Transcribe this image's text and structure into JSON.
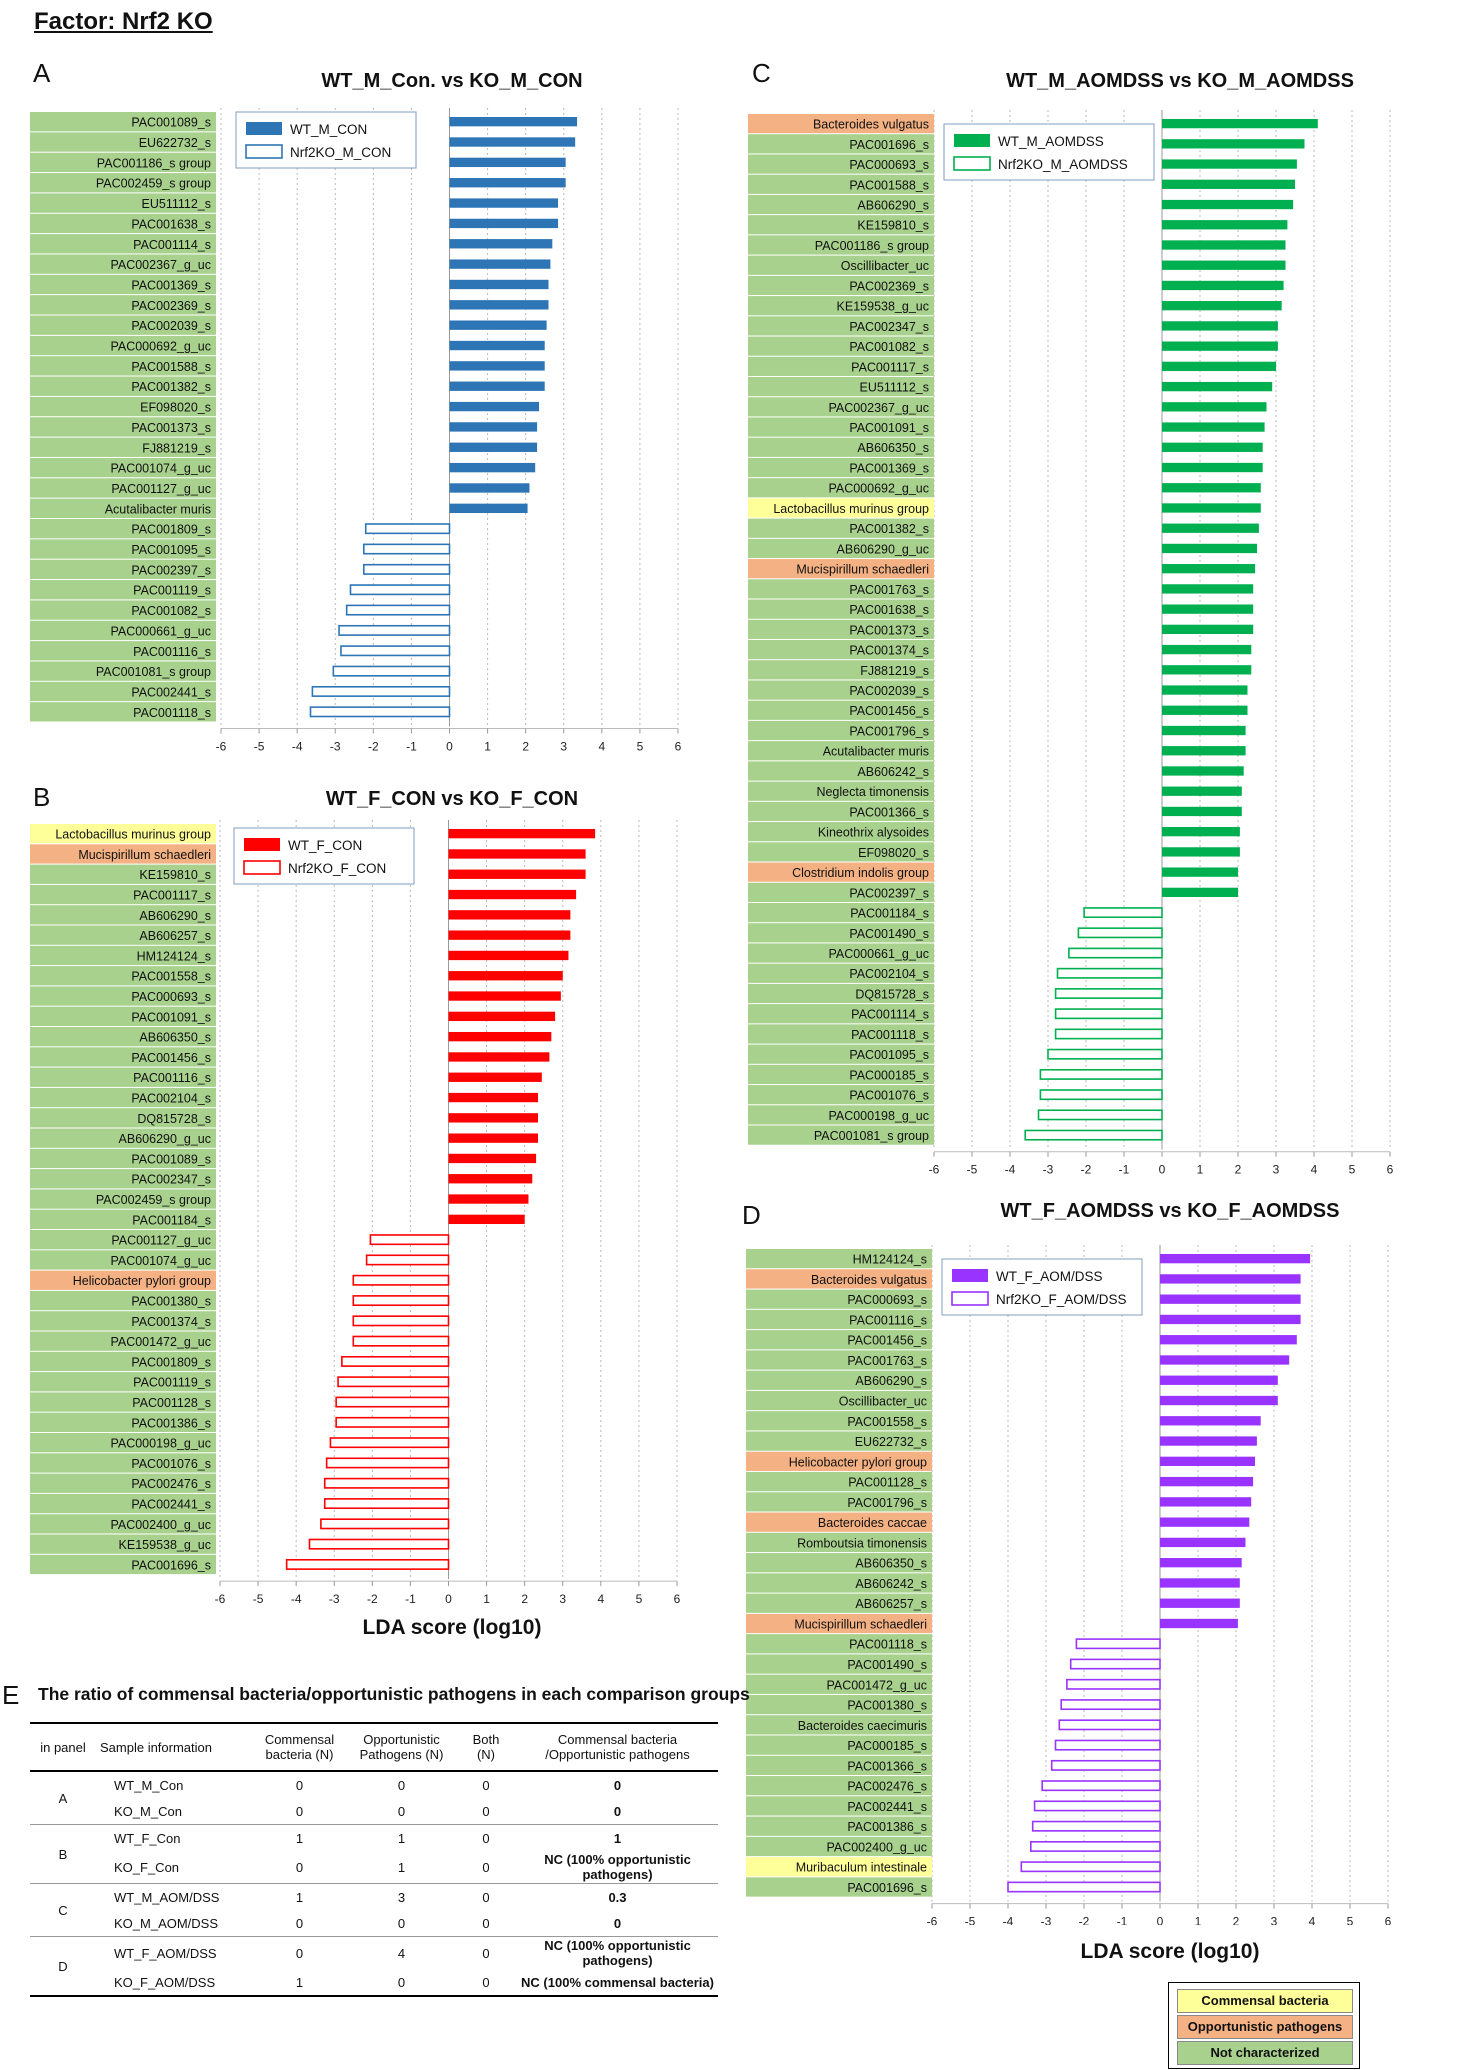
{
  "page_title": "Factor: Nrf2 KO",
  "colors": {
    "commensal": "#ffff99",
    "opportunistic": "#f4b183",
    "not_characterized": "#a9d18e",
    "A_bar": "#2e75b6",
    "B_bar": "#ff0000",
    "C_bar": "#00b050",
    "D_bar": "#9933ff"
  },
  "chart_data": [
    {
      "type": "bar",
      "panel": "A",
      "title": "WT_M_Con. vs KO_M_CON",
      "xlabel": "",
      "xlim": [
        -6,
        6
      ],
      "ticks": [
        "-6",
        "-5",
        "-4",
        "-3",
        "-2",
        "-1",
        "0",
        "1",
        "2",
        "3",
        "4",
        "5",
        "6"
      ],
      "legend": [
        "WT_M_CON",
        "Nrf2KO_M_CON"
      ],
      "color": "#2e75b6",
      "categories": [
        "PAC001089_s",
        "EU622732_s",
        "PAC001186_s group",
        "PAC002459_s group",
        "EU511112_s",
        "PAC001638_s",
        "PAC001114_s",
        "PAC002367_g_uc",
        "PAC001369_s",
        "PAC002369_s",
        "PAC002039_s",
        "PAC000692_g_uc",
        "PAC001588_s",
        "PAC001382_s",
        "EF098020_s",
        "PAC001373_s",
        "FJ881219_s",
        "PAC001074_g_uc",
        "PAC001127_g_uc",
        "Acutalibacter muris",
        "PAC001809_s",
        "PAC001095_s",
        "PAC002397_s",
        "PAC001119_s",
        "PAC001082_s",
        "PAC000661_g_uc",
        "PAC001116_s",
        "PAC001081_s group",
        "PAC002441_s",
        "PAC001118_s"
      ],
      "values": [
        3.35,
        3.3,
        3.05,
        3.05,
        2.85,
        2.85,
        2.7,
        2.65,
        2.6,
        2.6,
        2.55,
        2.5,
        2.5,
        2.5,
        2.35,
        2.3,
        2.3,
        2.25,
        2.1,
        2.05,
        -2.2,
        -2.25,
        -2.25,
        -2.6,
        -2.7,
        -2.9,
        -2.85,
        -3.05,
        -3.6,
        -3.65
      ],
      "category_type": [
        "n",
        "n",
        "n",
        "n",
        "n",
        "n",
        "n",
        "n",
        "n",
        "n",
        "n",
        "n",
        "n",
        "n",
        "n",
        "n",
        "n",
        "n",
        "n",
        "n",
        "n",
        "n",
        "n",
        "n",
        "n",
        "n",
        "n",
        "n",
        "n",
        "n"
      ]
    },
    {
      "type": "bar",
      "panel": "B",
      "title": "WT_F_CON vs KO_F_CON",
      "xlabel": "LDA score (log10)",
      "xlim": [
        -6,
        6
      ],
      "ticks": [
        "-6",
        "-5",
        "-4",
        "-3",
        "-2",
        "-1",
        "0",
        "1",
        "2",
        "3",
        "4",
        "5",
        "6"
      ],
      "legend": [
        "WT_F_CON",
        "Nrf2KO_F_CON"
      ],
      "color": "#ff0000",
      "categories": [
        "Lactobacillus murinus group",
        "Mucispirillum schaedleri",
        "KE159810_s",
        "PAC001117_s",
        "AB606290_s",
        "AB606257_s",
        "HM124124_s",
        "PAC001558_s",
        "PAC000693_s",
        "PAC001091_s",
        "AB606350_s",
        "PAC001456_s",
        "PAC001116_s",
        "PAC002104_s",
        "DQ815728_s",
        "AB606290_g_uc",
        "PAC001089_s",
        "PAC002347_s",
        "PAC002459_s group",
        "PAC001184_s",
        "PAC001127_g_uc",
        "PAC001074_g_uc",
        "Helicobacter pylori group",
        "PAC001380_s",
        "PAC001374_s",
        "PAC001472_g_uc",
        "PAC001809_s",
        "PAC001119_s",
        "PAC001128_s",
        "PAC001386_s",
        "PAC000198_g_uc",
        "PAC001076_s",
        "PAC002476_s",
        "PAC002441_s",
        "PAC002400_g_uc",
        "KE159538_g_uc",
        "PAC001696_s"
      ],
      "values": [
        3.85,
        3.6,
        3.6,
        3.35,
        3.2,
        3.2,
        3.15,
        3.0,
        2.95,
        2.8,
        2.7,
        2.65,
        2.45,
        2.35,
        2.35,
        2.35,
        2.3,
        2.2,
        2.1,
        2.0,
        -2.05,
        -2.15,
        -2.5,
        -2.5,
        -2.5,
        -2.5,
        -2.8,
        -2.9,
        -2.95,
        -2.95,
        -3.1,
        -3.2,
        -3.25,
        -3.25,
        -3.35,
        -3.65,
        -4.25
      ],
      "category_type": [
        "c",
        "o",
        "n",
        "n",
        "n",
        "n",
        "n",
        "n",
        "n",
        "n",
        "n",
        "n",
        "n",
        "n",
        "n",
        "n",
        "n",
        "n",
        "n",
        "n",
        "n",
        "n",
        "o",
        "n",
        "n",
        "n",
        "n",
        "n",
        "n",
        "n",
        "n",
        "n",
        "n",
        "n",
        "n",
        "n",
        "n"
      ]
    },
    {
      "type": "bar",
      "panel": "C",
      "title": "WT_M_AOMDSS vs KO_M_AOMDSS",
      "xlabel": "",
      "xlim": [
        -6,
        6
      ],
      "ticks": [
        "-6",
        "-5",
        "-4",
        "-3",
        "-2",
        "-1",
        "0",
        "1",
        "2",
        "3",
        "4",
        "5",
        "6"
      ],
      "legend": [
        "WT_M_AOMDSS",
        "Nrf2KO_M_AOMDSS"
      ],
      "color": "#00b050",
      "categories": [
        "Bacteroides vulgatus",
        "PAC001696_s",
        "PAC000693_s",
        "PAC001588_s",
        "AB606290_s",
        "KE159810_s",
        "PAC001186_s group",
        "Oscillibacter_uc",
        "PAC002369_s",
        "KE159538_g_uc",
        "PAC002347_s",
        "PAC001082_s",
        "PAC001117_s",
        "EU511112_s",
        "PAC002367_g_uc",
        "PAC001091_s",
        "AB606350_s",
        "PAC001369_s",
        "PAC000692_g_uc",
        "Lactobacillus murinus group",
        "PAC001382_s",
        "AB606290_g_uc",
        "Mucispirillum schaedleri",
        "PAC001763_s",
        "PAC001638_s",
        "PAC001373_s",
        "PAC001374_s",
        "FJ881219_s",
        "PAC002039_s",
        "PAC001456_s",
        "PAC001796_s",
        "Acutalibacter muris",
        "AB606242_s",
        "Neglecta timonensis",
        "PAC001366_s",
        "Kineothrix alysoides",
        "EF098020_s",
        "Clostridium indolis group",
        "PAC002397_s",
        "PAC001184_s",
        "PAC001490_s",
        "PAC000661_g_uc",
        "PAC002104_s",
        "DQ815728_s",
        "PAC001114_s",
        "PAC001118_s",
        "PAC001095_s",
        "PAC000185_s",
        "PAC001076_s",
        "PAC000198_g_uc",
        "PAC001081_s group"
      ],
      "values": [
        4.1,
        3.75,
        3.55,
        3.5,
        3.45,
        3.3,
        3.25,
        3.25,
        3.2,
        3.15,
        3.05,
        3.05,
        3.0,
        2.9,
        2.75,
        2.7,
        2.65,
        2.65,
        2.6,
        2.6,
        2.55,
        2.5,
        2.45,
        2.4,
        2.4,
        2.4,
        2.35,
        2.35,
        2.25,
        2.25,
        2.2,
        2.2,
        2.15,
        2.1,
        2.1,
        2.05,
        2.05,
        2.0,
        2.0,
        -2.05,
        -2.2,
        -2.45,
        -2.75,
        -2.8,
        -2.8,
        -2.8,
        -3.0,
        -3.2,
        -3.2,
        -3.25,
        -3.6
      ],
      "category_type": [
        "o",
        "n",
        "n",
        "n",
        "n",
        "n",
        "n",
        "n",
        "n",
        "n",
        "n",
        "n",
        "n",
        "n",
        "n",
        "n",
        "n",
        "n",
        "n",
        "c",
        "n",
        "n",
        "o",
        "n",
        "n",
        "n",
        "n",
        "n",
        "n",
        "n",
        "n",
        "n",
        "n",
        "n",
        "n",
        "n",
        "n",
        "o",
        "n",
        "n",
        "n",
        "n",
        "n",
        "n",
        "n",
        "n",
        "n",
        "n",
        "n",
        "n",
        "n"
      ]
    },
    {
      "type": "bar",
      "panel": "D",
      "title": "WT_F_AOMDSS vs KO_F_AOMDSS",
      "xlabel": "LDA score (log10)",
      "xlim": [
        -6,
        6
      ],
      "ticks": [
        "-6",
        "-5",
        "-4",
        "-3",
        "-2",
        "-1",
        "0",
        "1",
        "2",
        "3",
        "4",
        "5",
        "6"
      ],
      "legend": [
        "WT_F_AOM/DSS",
        "Nrf2KO_F_AOM/DSS"
      ],
      "color": "#9933ff",
      "categories": [
        "HM124124_s",
        "Bacteroides vulgatus",
        "PAC000693_s",
        "PAC001116_s",
        "PAC001456_s",
        "PAC001763_s",
        "AB606290_s",
        "Oscillibacter_uc",
        "PAC001558_s",
        "EU622732_s",
        "Helicobacter pylori group",
        "PAC001128_s",
        "PAC001796_s",
        "Bacteroides caccae",
        "Romboutsia timonensis",
        "AB606350_s",
        "AB606242_s",
        "AB606257_s",
        "Mucispirillum schaedleri",
        "PAC001118_s",
        "PAC001490_s",
        "PAC001472_g_uc",
        "PAC001380_s",
        "Bacteroides caecimuris",
        "PAC000185_s",
        "PAC001366_s",
        "PAC002476_s",
        "PAC002441_s",
        "PAC001386_s",
        "PAC002400_g_uc",
        "Muribaculum intestinale",
        "PAC001696_s"
      ],
      "values": [
        3.95,
        3.7,
        3.7,
        3.7,
        3.6,
        3.4,
        3.1,
        3.1,
        2.65,
        2.55,
        2.5,
        2.45,
        2.4,
        2.35,
        2.25,
        2.15,
        2.1,
        2.1,
        2.05,
        -2.2,
        -2.35,
        -2.45,
        -2.6,
        -2.65,
        -2.75,
        -2.85,
        -3.1,
        -3.3,
        -3.35,
        -3.4,
        -3.65,
        -4.0
      ],
      "category_type": [
        "n",
        "o",
        "n",
        "n",
        "n",
        "n",
        "n",
        "n",
        "n",
        "n",
        "o",
        "n",
        "n",
        "o",
        "n",
        "n",
        "n",
        "n",
        "o",
        "n",
        "n",
        "n",
        "n",
        "n",
        "n",
        "n",
        "n",
        "n",
        "n",
        "n",
        "c",
        "n"
      ]
    }
  ],
  "table": {
    "panel_letter": "E",
    "title": "The ratio of commensal bacteria/opportunistic pathogens in each comparison groups",
    "headers": {
      "panel": "in panel",
      "sample": "Sample information",
      "commensal": [
        "Commensal",
        "bacteria (N)"
      ],
      "opportunistic": [
        "Opportunistic",
        "Pathogens (N)"
      ],
      "both": [
        "Both",
        "(N)"
      ],
      "ratio": [
        "Commensal bacteria",
        "/Opportunistic pathogens"
      ]
    },
    "rows": [
      {
        "panel": "A",
        "sample": "WT_M_Con",
        "commensal": "0",
        "opportunistic": "0",
        "both": "0",
        "ratio": "0"
      },
      {
        "panel": "",
        "sample": "KO_M_Con",
        "commensal": "0",
        "opportunistic": "0",
        "both": "0",
        "ratio": "0"
      },
      {
        "panel": "B",
        "sample": "WT_F_Con",
        "commensal": "1",
        "opportunistic": "1",
        "both": "0",
        "ratio": "1"
      },
      {
        "panel": "",
        "sample": "KO_F_Con",
        "commensal": "0",
        "opportunistic": "1",
        "both": "0",
        "ratio": "NC (100% opportunistic pathogens)"
      },
      {
        "panel": "C",
        "sample": "WT_M_AOM/DSS",
        "commensal": "1",
        "opportunistic": "3",
        "both": "0",
        "ratio": "0.3"
      },
      {
        "panel": "",
        "sample": "KO_M_AOM/DSS",
        "commensal": "0",
        "opportunistic": "0",
        "both": "0",
        "ratio": "0"
      },
      {
        "panel": "D",
        "sample": "WT_F_AOM/DSS",
        "commensal": "0",
        "opportunistic": "4",
        "both": "0",
        "ratio": "NC (100% opportunistic pathogens)"
      },
      {
        "panel": "",
        "sample": "KO_F_AOM/DSS",
        "commensal": "1",
        "opportunistic": "0",
        "both": "0",
        "ratio": "NC (100% commensal bacteria)"
      }
    ]
  },
  "key": {
    "commensal": "Commensal bacteria",
    "opportunistic": "Opportunistic pathogens",
    "not_characterized": "Not characterized"
  }
}
